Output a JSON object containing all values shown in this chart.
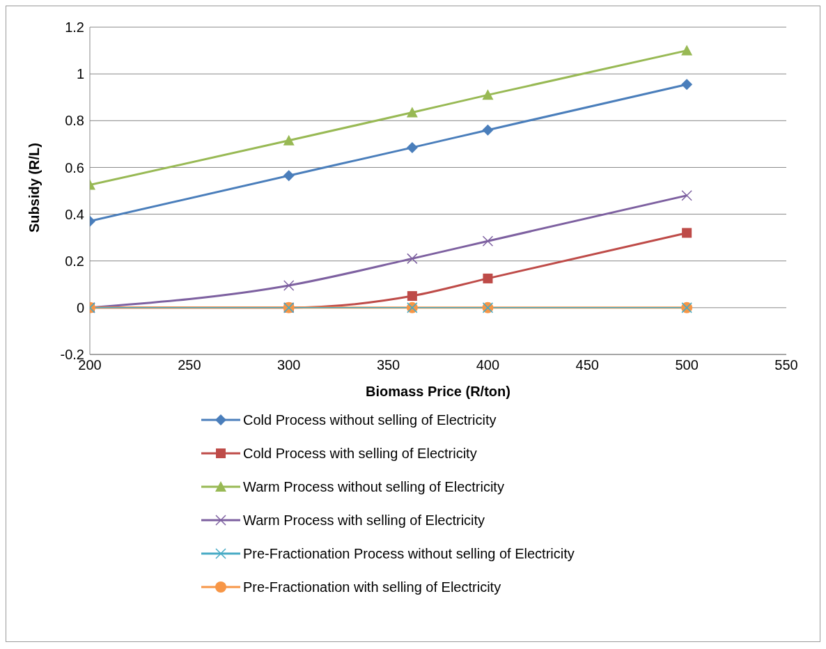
{
  "chart_data": {
    "type": "line",
    "xlabel": "Biomass Price (R/ton)",
    "ylabel": "Subsidy (R/L)",
    "x": [
      200,
      300,
      362,
      400,
      500
    ],
    "series": [
      {
        "name": "Cold Process without selling of Electricity",
        "color": "#4a7ebb",
        "marker": "diamond",
        "values": [
          0.37,
          0.565,
          0.685,
          0.76,
          0.955
        ]
      },
      {
        "name": "Cold Process with selling of Electricity",
        "color": "#be4b48",
        "marker": "square",
        "values": [
          0,
          0,
          0.05,
          0.125,
          0.32
        ]
      },
      {
        "name": "Warm Process without selling of Electricity",
        "color": "#98b954",
        "marker": "triangle",
        "values": [
          0.525,
          0.715,
          0.835,
          0.91,
          1.1
        ]
      },
      {
        "name": "Warm Process with selling of Electricity",
        "color": "#7d60a0",
        "marker": "cross",
        "values": [
          0,
          0.095,
          0.21,
          0.285,
          0.48
        ]
      },
      {
        "name": "Pre-Fractionation Process without selling of Electricity",
        "color": "#46aac5",
        "marker": "cross",
        "values": [
          0,
          0,
          0,
          0,
          0
        ]
      },
      {
        "name": "Pre-Fractionation with selling of Electricity",
        "color": "#f79646",
        "marker": "circle",
        "values": [
          0,
          0,
          0,
          0,
          0
        ]
      }
    ],
    "xlim": [
      200,
      550
    ],
    "xticks": [
      200,
      250,
      300,
      350,
      400,
      450,
      500,
      550
    ],
    "ylim": [
      -0.2,
      1.2
    ],
    "yticks": [
      -0.2,
      0,
      0.2,
      0.4,
      0.6,
      0.8,
      1,
      1.2
    ],
    "grid": "y",
    "legend": "bottom"
  }
}
